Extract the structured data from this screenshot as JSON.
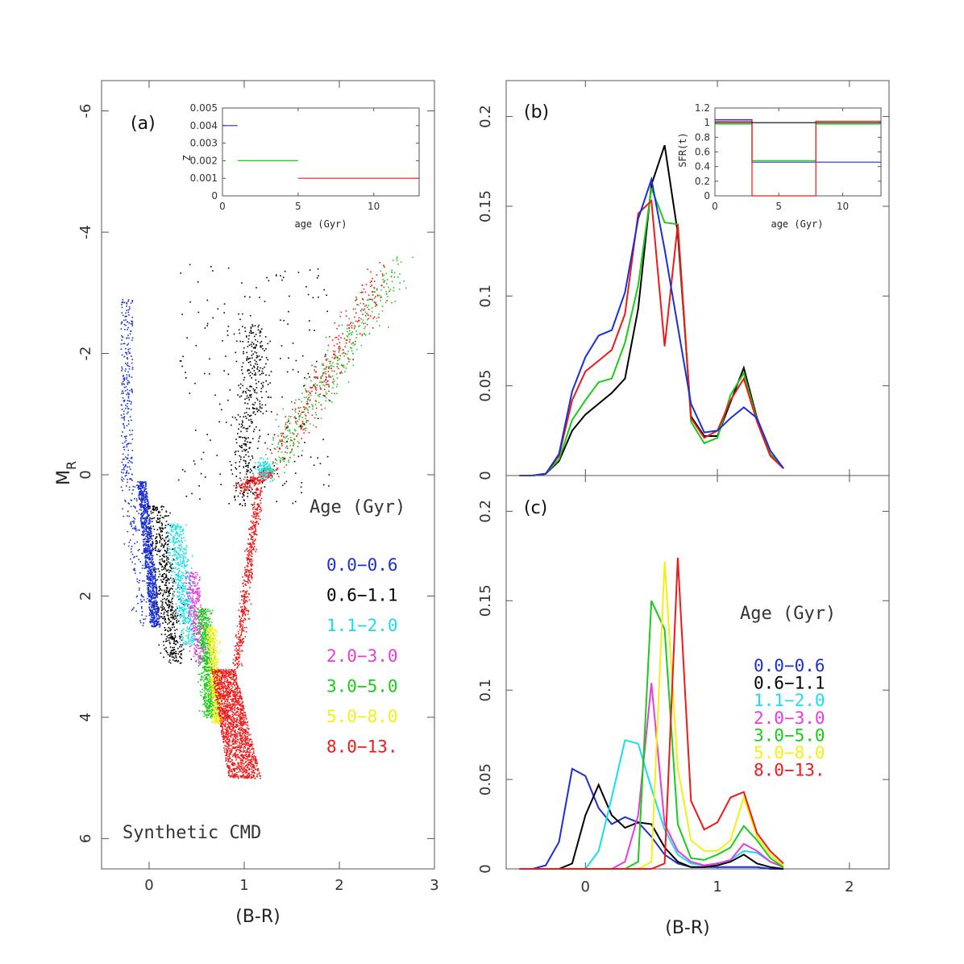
{
  "axes": {
    "cmd_ylabel": "M",
    "cmd_ylabel_sub": "R",
    "xlabel_left": "(B-R)",
    "xlabel_right": "(B-R)"
  },
  "colors": {
    "blue": "#1a2fd6",
    "black": "#000000",
    "cyan": "#17e0e8",
    "magenta": "#e53be0",
    "green": "#19cc19",
    "yellow": "#f5ef12",
    "red": "#ee1a1a"
  },
  "chart_data": [
    {
      "type": "scatter",
      "panel_label": "(a)",
      "annotation": "Synthetic CMD",
      "legend_title": "Age (Gyr)",
      "legend": [
        {
          "label": "0.0−0.6",
          "color": "#1a2fd6"
        },
        {
          "label": "0.6−1.1",
          "color": "#000000"
        },
        {
          "label": "1.1−2.0",
          "color": "#17e0e8"
        },
        {
          "label": "2.0−3.0",
          "color": "#e53be0"
        },
        {
          "label": "3.0−5.0",
          "color": "#19cc19"
        },
        {
          "label": "5.0−8.0",
          "color": "#f5ef12"
        },
        {
          "label": "8.0−13.",
          "color": "#ee1a1a"
        }
      ],
      "xlim": [
        -0.5,
        3
      ],
      "ylim": [
        6.5,
        -6.5
      ],
      "xticks": [
        0,
        1,
        2,
        3
      ],
      "yticks": [
        -6,
        -4,
        -2,
        0,
        2,
        4,
        6
      ],
      "inset": {
        "ylabel": "Z",
        "xlabel": "age (Gyr)",
        "xlim": [
          0,
          13
        ],
        "ylim": [
          0,
          0.005
        ],
        "xticks": [
          0,
          5,
          10
        ],
        "yticks": [
          0,
          0.001,
          0.002,
          0.003,
          0.004,
          0.005
        ],
        "ytick_labels": [
          "0",
          "0.001",
          "0.002",
          "0.003",
          "0.004",
          "0.005"
        ],
        "segments": [
          {
            "x": [
              0,
              1
            ],
            "y": 0.004,
            "color": "#1a2fd6"
          },
          {
            "x": [
              1,
              5
            ],
            "y": 0.002,
            "color": "#19cc19"
          },
          {
            "x": [
              5,
              13
            ],
            "y": 0.001,
            "color": "#ee1a1a"
          }
        ]
      }
    },
    {
      "type": "line",
      "panel_label": "(b)",
      "xlim": [
        -0.6,
        2.3
      ],
      "ylim": [
        0,
        0.22
      ],
      "xticks": [
        0,
        1,
        2
      ],
      "yticks": [
        0,
        0.05,
        0.1,
        0.15,
        0.2
      ],
      "ytick_labels": [
        "0",
        "0.05",
        "0.1",
        "0.15",
        "0.2"
      ],
      "x": [
        -0.5,
        -0.4,
        -0.3,
        -0.2,
        -0.1,
        0.0,
        0.1,
        0.2,
        0.3,
        0.4,
        0.5,
        0.6,
        0.7,
        0.8,
        0.9,
        1.0,
        1.1,
        1.2,
        1.3,
        1.4,
        1.5
      ],
      "series": [
        {
          "color": "#000000",
          "values": [
            0,
            0,
            0.001,
            0.008,
            0.025,
            0.034,
            0.04,
            0.046,
            0.054,
            0.093,
            0.162,
            0.184,
            0.135,
            0.033,
            0.022,
            0.022,
            0.041,
            0.06,
            0.032,
            0.012,
            0.004
          ]
        },
        {
          "color": "#19cc19",
          "values": [
            0,
            0,
            0.001,
            0.009,
            0.031,
            0.042,
            0.052,
            0.054,
            0.074,
            0.106,
            0.16,
            0.141,
            0.14,
            0.03,
            0.018,
            0.021,
            0.045,
            0.057,
            0.031,
            0.012,
            0.004
          ]
        },
        {
          "color": "#ee1a1a",
          "values": [
            0,
            0,
            0.001,
            0.011,
            0.042,
            0.058,
            0.064,
            0.07,
            0.09,
            0.146,
            0.153,
            0.072,
            0.14,
            0.032,
            0.021,
            0.025,
            0.042,
            0.054,
            0.03,
            0.011,
            0.004
          ]
        },
        {
          "color": "#1a2fd6",
          "values": [
            0,
            0,
            0.001,
            0.012,
            0.047,
            0.066,
            0.078,
            0.081,
            0.102,
            0.143,
            0.165,
            0.126,
            0.083,
            0.04,
            0.024,
            0.025,
            0.032,
            0.038,
            0.032,
            0.014,
            0.004
          ]
        }
      ],
      "inset": {
        "ylabel": "SFR(t)",
        "xlabel": "age (Gyr)",
        "xlim": [
          0,
          13
        ],
        "ylim": [
          0,
          1.2
        ],
        "xticks": [
          0,
          5,
          10
        ],
        "yticks": [
          0,
          0.2,
          0.4,
          0.6,
          0.8,
          1,
          1.2
        ],
        "ytick_labels": [
          "0",
          "0.2",
          "0.4",
          "0.6",
          "0.8",
          "1",
          "1.2"
        ],
        "steps": [
          {
            "color": "#1a2fd6",
            "points": [
              [
                0,
                1.04
              ],
              [
                2.9,
                1.04
              ],
              [
                2.9,
                0.46
              ],
              [
                13,
                0.46
              ]
            ]
          },
          {
            "color": "#19cc19",
            "points": [
              [
                0,
                0.98
              ],
              [
                2.9,
                0.98
              ],
              [
                2.9,
                0.48
              ],
              [
                7.9,
                0.48
              ],
              [
                7.9,
                0.98
              ],
              [
                13,
                0.98
              ]
            ]
          },
          {
            "color": "#ee1a1a",
            "points": [
              [
                0,
                1.02
              ],
              [
                2.9,
                1.02
              ],
              [
                2.9,
                0.0
              ],
              [
                7.9,
                0.0
              ],
              [
                7.9,
                1.02
              ],
              [
                13,
                1.02
              ]
            ]
          },
          {
            "color": "#000000",
            "points": [
              [
                0,
                1.0
              ],
              [
                13,
                1.0
              ]
            ]
          }
        ]
      }
    },
    {
      "type": "line",
      "panel_label": "(c)",
      "legend_title": "Age (Gyr)",
      "legend": [
        {
          "label": "0.0−0.6",
          "color": "#1a2fd6"
        },
        {
          "label": "0.6−1.1",
          "color": "#000000"
        },
        {
          "label": "1.1−2.0",
          "color": "#17e0e8"
        },
        {
          "label": "2.0−3.0",
          "color": "#e53be0"
        },
        {
          "label": "3.0−5.0",
          "color": "#19cc19"
        },
        {
          "label": "5.0−8.0",
          "color": "#f5ef12"
        },
        {
          "label": "8.0−13.",
          "color": "#ee1a1a"
        }
      ],
      "xlim": [
        -0.6,
        2.3
      ],
      "ylim": [
        0,
        0.22
      ],
      "xticks": [
        0,
        1,
        2
      ],
      "yticks": [
        0,
        0.05,
        0.1,
        0.15,
        0.2
      ],
      "ytick_labels": [
        "0",
        "0.05",
        "0.1",
        "0.15",
        "0.2"
      ],
      "x": [
        -0.5,
        -0.4,
        -0.3,
        -0.2,
        -0.1,
        0.0,
        0.1,
        0.2,
        0.3,
        0.4,
        0.5,
        0.6,
        0.7,
        0.8,
        0.9,
        1.0,
        1.1,
        1.2,
        1.3,
        1.4,
        1.5
      ],
      "series": [
        {
          "color": "#1a2fd6",
          "values": [
            0,
            0,
            0.002,
            0.015,
            0.056,
            0.052,
            0.034,
            0.025,
            0.029,
            0.026,
            0.018,
            0.008,
            0.003,
            0.001,
            0.001,
            0.001,
            0.001,
            0.001,
            0.001,
            0.0,
            0.0
          ]
        },
        {
          "color": "#000000",
          "values": [
            0,
            0,
            0,
            0,
            0.003,
            0.03,
            0.047,
            0.03,
            0.023,
            0.026,
            0.025,
            0.012,
            0.004,
            0.001,
            0.001,
            0.002,
            0.004,
            0.008,
            0.003,
            0.001,
            0.0
          ]
        },
        {
          "color": "#17e0e8",
          "values": [
            0,
            0,
            0,
            0,
            0,
            0,
            0.01,
            0.04,
            0.072,
            0.07,
            0.045,
            0.022,
            0.008,
            0.003,
            0.002,
            0.003,
            0.005,
            0.01,
            0.009,
            0.004,
            0.001
          ]
        },
        {
          "color": "#e53be0",
          "values": [
            0,
            0,
            0,
            0,
            0,
            0,
            0,
            0,
            0.004,
            0.03,
            0.104,
            0.025,
            0.01,
            0.004,
            0.002,
            0.003,
            0.005,
            0.014,
            0.01,
            0.004,
            0.001
          ]
        },
        {
          "color": "#19cc19",
          "values": [
            0,
            0,
            0,
            0,
            0,
            0,
            0,
            0,
            0,
            0.004,
            0.15,
            0.134,
            0.025,
            0.006,
            0.005,
            0.008,
            0.012,
            0.024,
            0.016,
            0.006,
            0.001
          ]
        },
        {
          "color": "#f5ef12",
          "values": [
            0,
            0,
            0,
            0,
            0,
            0,
            0,
            0,
            0,
            0,
            0.004,
            0.172,
            0.056,
            0.016,
            0.01,
            0.01,
            0.016,
            0.04,
            0.018,
            0.008,
            0.002
          ]
        },
        {
          "color": "#ee1a1a",
          "values": [
            0,
            0,
            0,
            0,
            0,
            0,
            0,
            0,
            0,
            0,
            0,
            0.003,
            0.174,
            0.038,
            0.022,
            0.026,
            0.04,
            0.043,
            0.02,
            0.01,
            0.003
          ]
        }
      ]
    }
  ]
}
